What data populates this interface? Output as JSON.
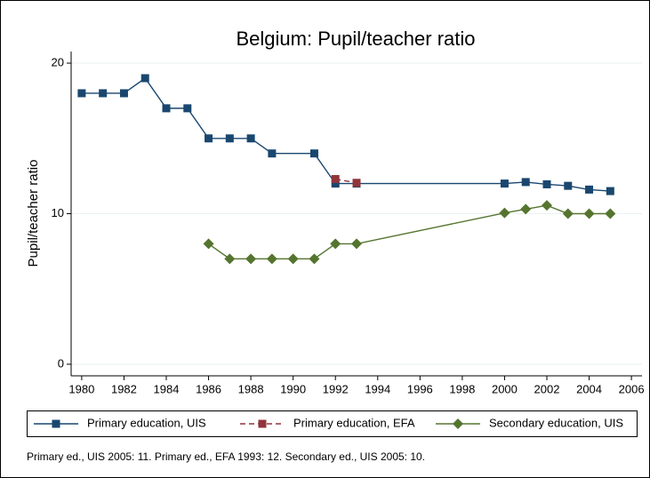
{
  "chart_data": {
    "type": "line",
    "title": "Belgium: Pupil/teacher ratio",
    "y_label": "Pupil/teacher ratio",
    "note": "Primary ed., UIS 2005: 11. Primary ed., EFA 1993: 12. Secondary ed., UIS 2005: 10.",
    "xlim": [
      1979.5,
      2006.5
    ],
    "xticks": [
      1980,
      1982,
      1984,
      1986,
      1988,
      1990,
      1992,
      1994,
      1996,
      1998,
      2000,
      2002,
      2004,
      2006
    ],
    "ylim": [
      -0.77,
      20.77
    ],
    "yticks": [
      0,
      10,
      20
    ],
    "grid": true,
    "legend": "bottom",
    "series": [
      {
        "name": "Primary education, UIS",
        "color": "#1a476f",
        "marker": "square",
        "dash": false,
        "x": [
          1980,
          1981,
          1982,
          1983,
          1984,
          1985,
          1986,
          1987,
          1988,
          1989,
          1991,
          1992,
          1993,
          2000,
          2001,
          2002,
          2003,
          2004,
          2005
        ],
        "values": [
          18,
          18,
          18,
          19,
          17,
          17,
          15,
          15,
          15,
          14,
          14,
          12,
          12,
          12,
          12.1,
          11.95,
          11.85,
          11.6,
          11.5
        ]
      },
      {
        "name": "Primary education, EFA",
        "color": "#90353b",
        "marker": "square",
        "dash": true,
        "x": [
          1992,
          1993
        ],
        "values": [
          12.3,
          12.05
        ]
      },
      {
        "name": "Secondary education, UIS",
        "color": "#55752f",
        "marker": "diamond",
        "dash": false,
        "x": [
          1986,
          1987,
          1988,
          1989,
          1990,
          1991,
          1992,
          1993,
          2000,
          2001,
          2002,
          2003,
          2004,
          2005
        ],
        "values": [
          8,
          7,
          7,
          7,
          7,
          7,
          8,
          8,
          10.05,
          10.3,
          10.55,
          10,
          10,
          10
        ]
      }
    ]
  }
}
